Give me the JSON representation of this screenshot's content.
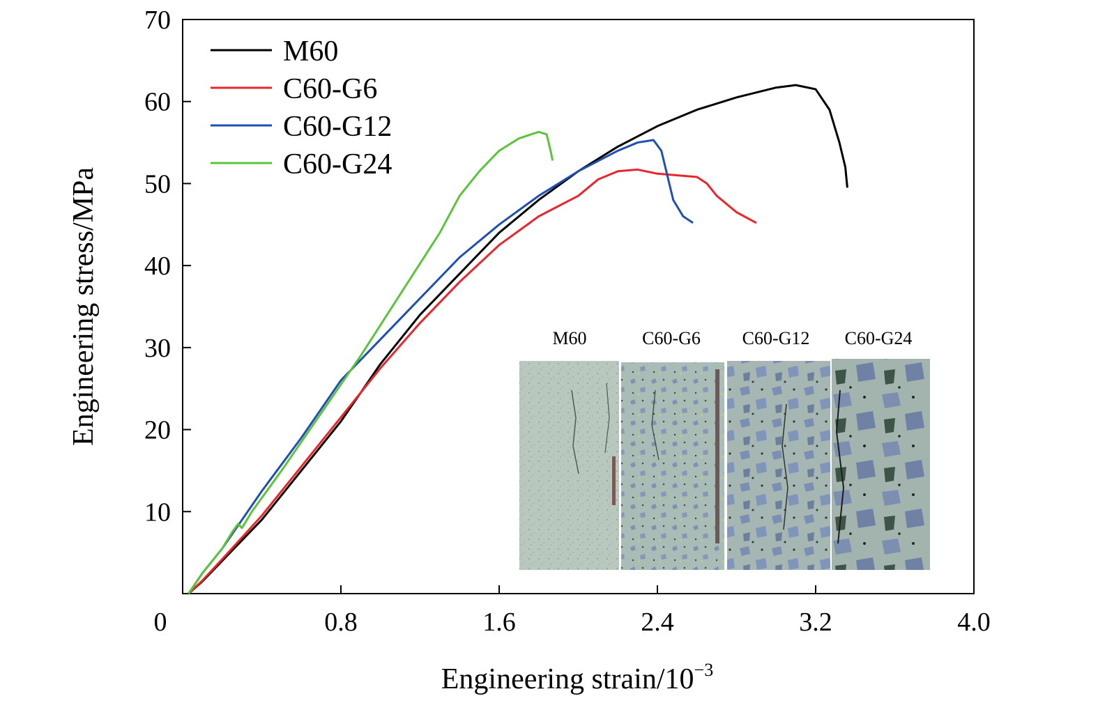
{
  "chart_data": {
    "type": "line",
    "xlabel": "Engineering strain/10",
    "xlabel_exponent": "−3",
    "ylabel": "Engineering stress/MPa",
    "xlim": [
      0,
      4.0
    ],
    "ylim": [
      0,
      70
    ],
    "x_ticks": [
      "0",
      "0.8",
      "1.6",
      "2.4",
      "3.2",
      "4.0"
    ],
    "x_tick_values": [
      0,
      0.8,
      1.6,
      2.4,
      3.2,
      4.0
    ],
    "y_ticks": [
      "10",
      "20",
      "30",
      "40",
      "50",
      "60",
      "70"
    ],
    "y_tick_values": [
      10,
      20,
      30,
      40,
      50,
      60,
      70
    ],
    "grid": false,
    "legend_position": "top-left",
    "series": [
      {
        "name": "M60",
        "color": "#000000",
        "points": [
          [
            0.03,
            0
          ],
          [
            0.1,
            1.5
          ],
          [
            0.2,
            4
          ],
          [
            0.4,
            9
          ],
          [
            0.6,
            15
          ],
          [
            0.8,
            21
          ],
          [
            1.0,
            28
          ],
          [
            1.2,
            34
          ],
          [
            1.4,
            39
          ],
          [
            1.6,
            44
          ],
          [
            1.8,
            48
          ],
          [
            2.0,
            51.5
          ],
          [
            2.2,
            54.5
          ],
          [
            2.4,
            57
          ],
          [
            2.6,
            59
          ],
          [
            2.8,
            60.5
          ],
          [
            3.0,
            61.7
          ],
          [
            3.1,
            62
          ],
          [
            3.2,
            61.5
          ],
          [
            3.27,
            59
          ],
          [
            3.32,
            55
          ],
          [
            3.35,
            52
          ],
          [
            3.36,
            49.5
          ]
        ]
      },
      {
        "name": "C60-G6",
        "color": "#e8262b",
        "points": [
          [
            0.03,
            0
          ],
          [
            0.1,
            1.6
          ],
          [
            0.2,
            4.2
          ],
          [
            0.4,
            9.5
          ],
          [
            0.6,
            15.5
          ],
          [
            0.8,
            21.5
          ],
          [
            1.0,
            27.5
          ],
          [
            1.2,
            33
          ],
          [
            1.4,
            38
          ],
          [
            1.6,
            42.5
          ],
          [
            1.8,
            46
          ],
          [
            2.0,
            48.5
          ],
          [
            2.1,
            50.5
          ],
          [
            2.2,
            51.5
          ],
          [
            2.3,
            51.7
          ],
          [
            2.4,
            51.2
          ],
          [
            2.5,
            51
          ],
          [
            2.6,
            50.8
          ],
          [
            2.65,
            50
          ],
          [
            2.7,
            48.5
          ],
          [
            2.8,
            46.5
          ],
          [
            2.9,
            45.2
          ]
        ]
      },
      {
        "name": "C60-G12",
        "color": "#1f4eb4",
        "points": [
          [
            0.03,
            0
          ],
          [
            0.1,
            2.5
          ],
          [
            0.2,
            5.5
          ],
          [
            0.3,
            9
          ],
          [
            0.4,
            12.5
          ],
          [
            0.6,
            19
          ],
          [
            0.8,
            26
          ],
          [
            1.0,
            31
          ],
          [
            1.2,
            36
          ],
          [
            1.4,
            41
          ],
          [
            1.6,
            45
          ],
          [
            1.8,
            48.5
          ],
          [
            2.0,
            51.5
          ],
          [
            2.2,
            54
          ],
          [
            2.3,
            55
          ],
          [
            2.38,
            55.3
          ],
          [
            2.42,
            54
          ],
          [
            2.45,
            51
          ],
          [
            2.48,
            48
          ],
          [
            2.53,
            46
          ],
          [
            2.58,
            45.2
          ]
        ]
      },
      {
        "name": "C60-G24",
        "color": "#5ac43a",
        "points": [
          [
            0.03,
            0
          ],
          [
            0.1,
            2.5
          ],
          [
            0.2,
            5.5
          ],
          [
            0.25,
            7.5
          ],
          [
            0.28,
            8.5
          ],
          [
            0.3,
            8
          ],
          [
            0.35,
            10
          ],
          [
            0.5,
            15
          ],
          [
            0.7,
            22
          ],
          [
            0.9,
            29
          ],
          [
            1.1,
            36.5
          ],
          [
            1.3,
            44
          ],
          [
            1.4,
            48.5
          ],
          [
            1.5,
            51.5
          ],
          [
            1.6,
            54
          ],
          [
            1.7,
            55.5
          ],
          [
            1.8,
            56.3
          ],
          [
            1.84,
            56
          ],
          [
            1.86,
            54
          ],
          [
            1.87,
            52.8
          ]
        ]
      }
    ]
  },
  "inset": {
    "labels": [
      "M60",
      "C60-G6",
      "C60-G12",
      "C60-G24"
    ]
  }
}
